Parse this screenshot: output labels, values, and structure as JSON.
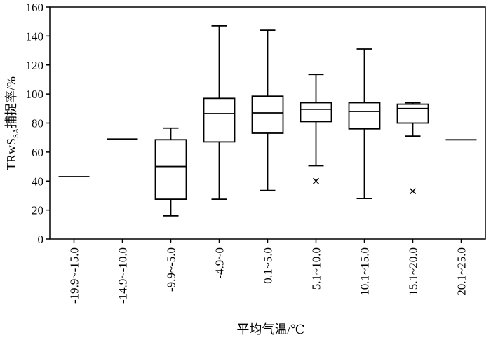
{
  "chart_data": {
    "type": "boxplot",
    "xlabel": "平均气温/℃",
    "ylabel": {
      "main": "TRwS",
      "sub1": "SA",
      "subscript": "SA",
      "suffix": "捕捉率/%"
    },
    "ylim": [
      0,
      160
    ],
    "yticks": [
      0,
      20,
      40,
      60,
      80,
      100,
      120,
      140,
      160
    ],
    "grid": false,
    "categories": [
      "-19.9~-15.0",
      "-14.9~-10.0",
      "-9.9~-5.0",
      "-4.9~0",
      "0.1~5.0",
      "5.1~10.0",
      "10.1~15.0",
      "15.1~20.0",
      "20.1~25.0"
    ],
    "boxes": [
      {
        "min": 43,
        "q1": 43,
        "median": 43,
        "q3": 43,
        "max": 43,
        "outliers": []
      },
      {
        "min": 69,
        "q1": 69,
        "median": 69,
        "q3": 69,
        "max": 69,
        "outliers": []
      },
      {
        "min": 16,
        "q1": 27.5,
        "median": 50,
        "q3": 68.5,
        "max": 76.5,
        "outliers": []
      },
      {
        "min": 27.5,
        "q1": 67,
        "median": 86.5,
        "q3": 97,
        "max": 147,
        "outliers": []
      },
      {
        "min": 33.5,
        "q1": 73,
        "median": 87,
        "q3": 98.5,
        "max": 144,
        "outliers": []
      },
      {
        "min": 50.5,
        "q1": 81,
        "median": 89.5,
        "q3": 94,
        "max": 113.5,
        "outliers": [
          40
        ]
      },
      {
        "min": 28,
        "q1": 76,
        "median": 88,
        "q3": 94,
        "max": 131,
        "outliers": []
      },
      {
        "min": 71,
        "q1": 80,
        "median": 90,
        "q3": 93,
        "max": 94,
        "outliers": [
          33
        ]
      },
      {
        "min": 68.5,
        "q1": 68.5,
        "median": 68.5,
        "q3": 68.5,
        "max": 68.5,
        "outliers": []
      }
    ]
  }
}
